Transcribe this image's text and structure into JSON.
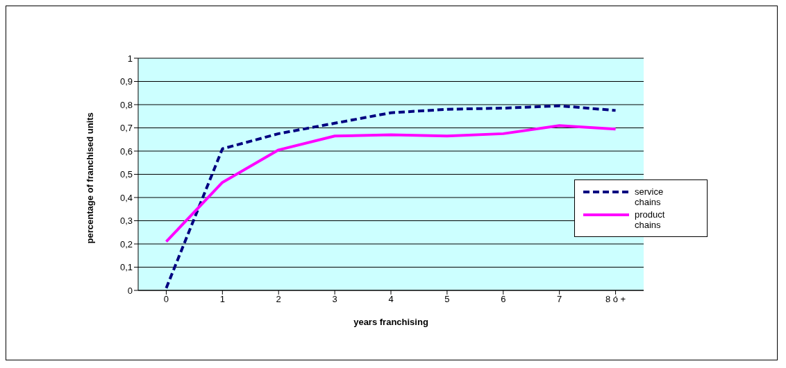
{
  "chart_data": {
    "type": "line",
    "xlabel": "years franchising",
    "ylabel": "percentage of franchised units",
    "categories": [
      "0",
      "1",
      "2",
      "3",
      "4",
      "5",
      "6",
      "7",
      "8 ó +"
    ],
    "series": [
      {
        "name": "service chains",
        "color": "#000080",
        "line_style": "dashed",
        "values": [
          0.01,
          0.61,
          0.675,
          0.72,
          0.765,
          0.78,
          0.785,
          0.795,
          0.775
        ]
      },
      {
        "name": "product chains",
        "color": "#ff00ff",
        "line_style": "solid",
        "values": [
          0.21,
          0.465,
          0.605,
          0.665,
          0.67,
          0.665,
          0.675,
          0.71,
          0.695
        ]
      }
    ],
    "ylim": [
      0,
      1
    ],
    "yticks": [
      0,
      {
        "value": 0.1,
        "label": "0,1"
      },
      {
        "value": 0.2,
        "label": "0,2"
      },
      {
        "value": 0.3,
        "label": "0,3"
      },
      {
        "value": 0.4,
        "label": "0,4"
      },
      {
        "value": 0.5,
        "label": "0,5"
      },
      {
        "value": 0.6,
        "label": "0,6"
      },
      {
        "value": 0.7,
        "label": "0,7"
      },
      {
        "value": 0.8,
        "label": "0,8"
      },
      {
        "value": 0.9,
        "label": "0,9"
      },
      1
    ],
    "grid": "y",
    "legend": "right",
    "marker": "none"
  }
}
